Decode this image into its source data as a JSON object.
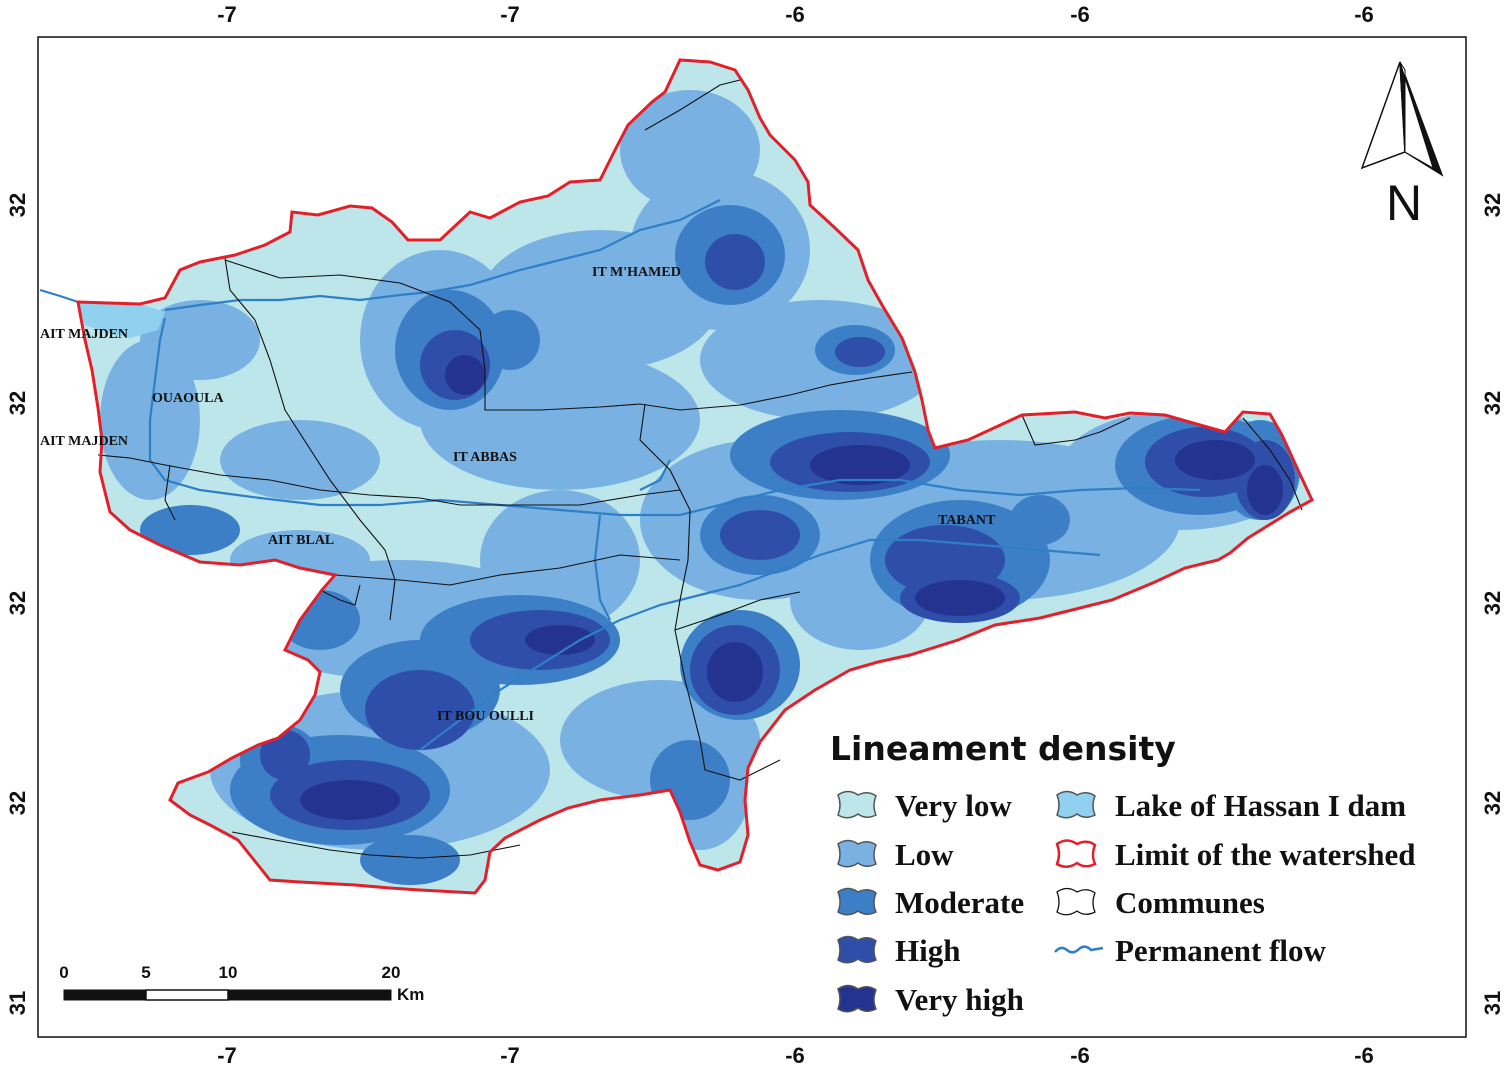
{
  "map": {
    "top_ticks": [
      "-7",
      "-7",
      "-6",
      "-6",
      "-6"
    ],
    "bottom_ticks": [
      "-7",
      "-7",
      "-6",
      "-6",
      "-6"
    ],
    "left_ticks": [
      "32",
      "32",
      "32",
      "32",
      "31"
    ],
    "right_ticks": [
      "32",
      "32",
      "32",
      "32",
      "31"
    ]
  },
  "communes": {
    "ait_majden_north": "AIT MAJDEN",
    "ouaoula": "OUAOULA",
    "ait_majden_south": "AIT MAJDEN",
    "it_mhamed": "IT M'HAMED",
    "it_abbas": "IT ABBAS",
    "tabant": "TABANT",
    "ait_blal": "AIT BLAL",
    "it_bou_oulli": "IT BOU OULLI"
  },
  "legend": {
    "title": "Lineament density",
    "classes": [
      {
        "label": "Very low",
        "color": "#bde6ea"
      },
      {
        "label": "Low",
        "color": "#78b1e2"
      },
      {
        "label": "Moderate",
        "color": "#3c7fc6"
      },
      {
        "label": "High",
        "color": "#2f4ea9"
      },
      {
        "label": "Very high",
        "color": "#24338f"
      }
    ],
    "other": [
      {
        "label": "Lake of Hassan I dam",
        "color": "#8fd1ef"
      },
      {
        "label": "Limit of the watershed",
        "color": "#e3202a"
      },
      {
        "label": "Communes",
        "color": "#ffffff"
      },
      {
        "label": "Permanent flow",
        "color": "#2f7fc8"
      }
    ]
  },
  "scale_bar": {
    "labels": [
      "0",
      "5",
      "10",
      "20"
    ],
    "unit": "Km"
  },
  "north_arrow": {
    "label": "N"
  }
}
